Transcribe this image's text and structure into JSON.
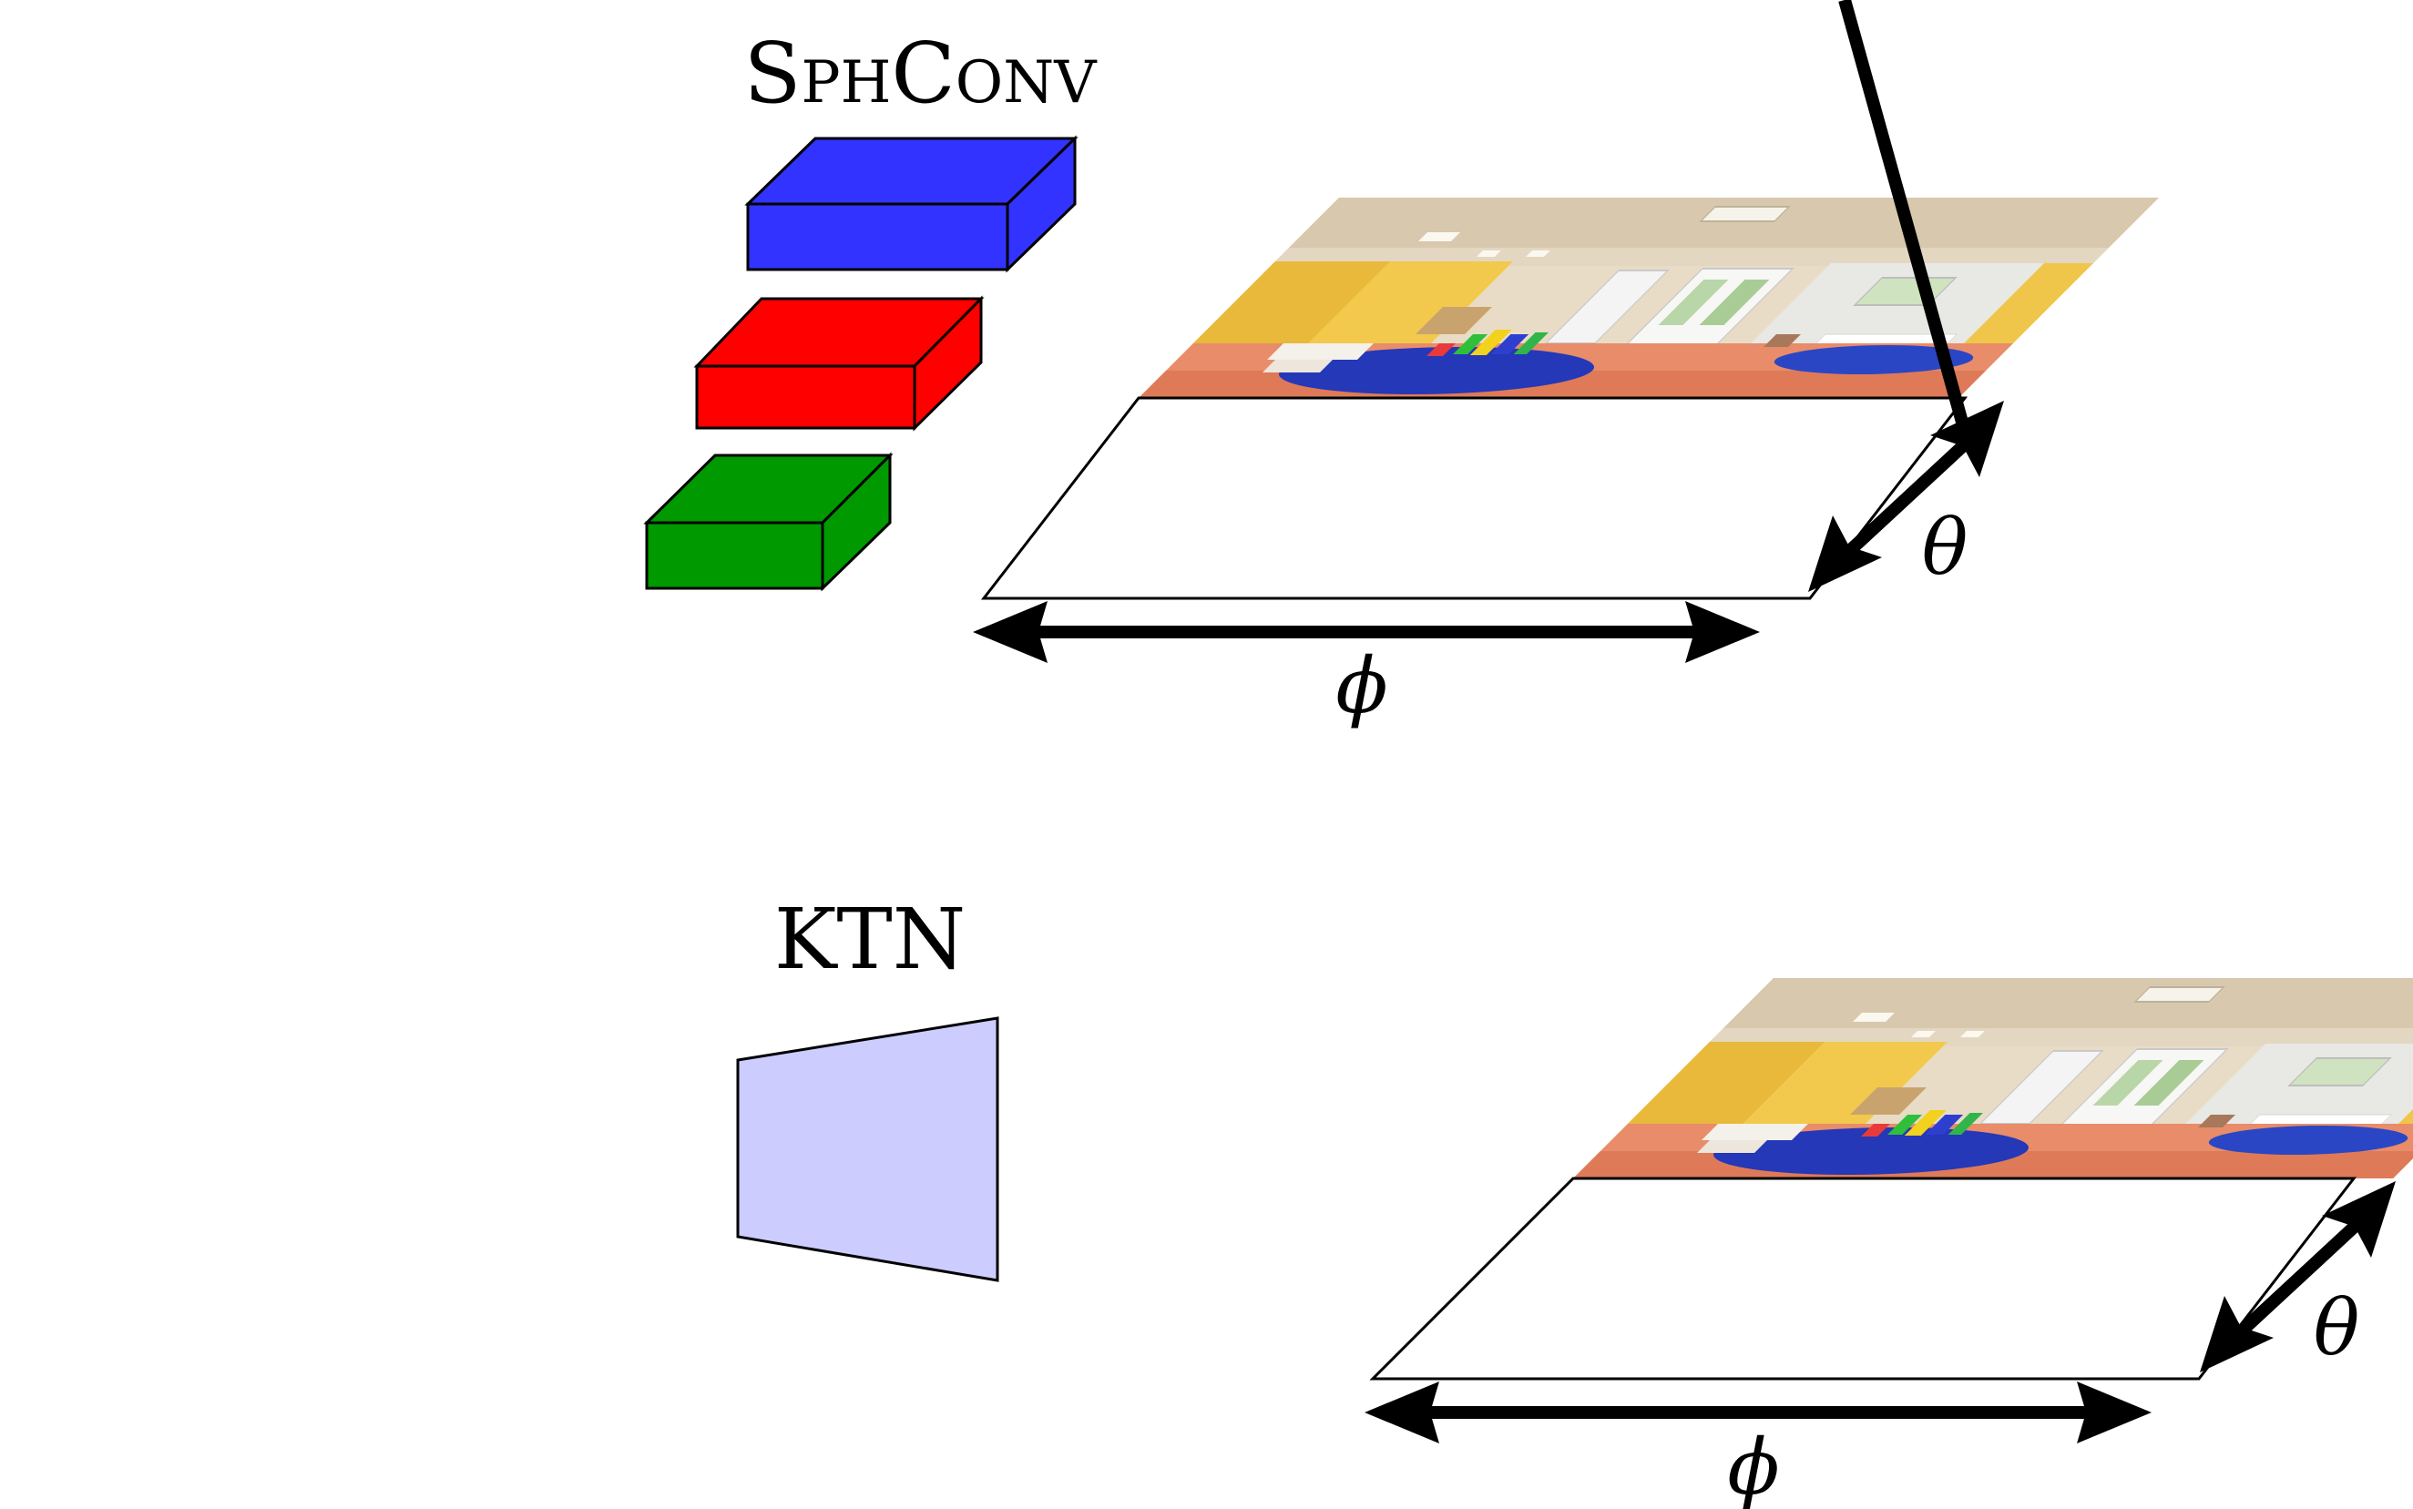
{
  "diagram": {
    "sphconv": {
      "label": "SphConv",
      "blocks": [
        {
          "name": "blue",
          "color": "#3333ff"
        },
        {
          "name": "red",
          "color": "#ff0000"
        },
        {
          "name": "green",
          "color": "#009900"
        }
      ]
    },
    "ktn": {
      "label": "KTN",
      "kernel_color": "#ccccff"
    },
    "panorama": {
      "phi_label": "ϕ",
      "theta_label": "θ"
    }
  }
}
